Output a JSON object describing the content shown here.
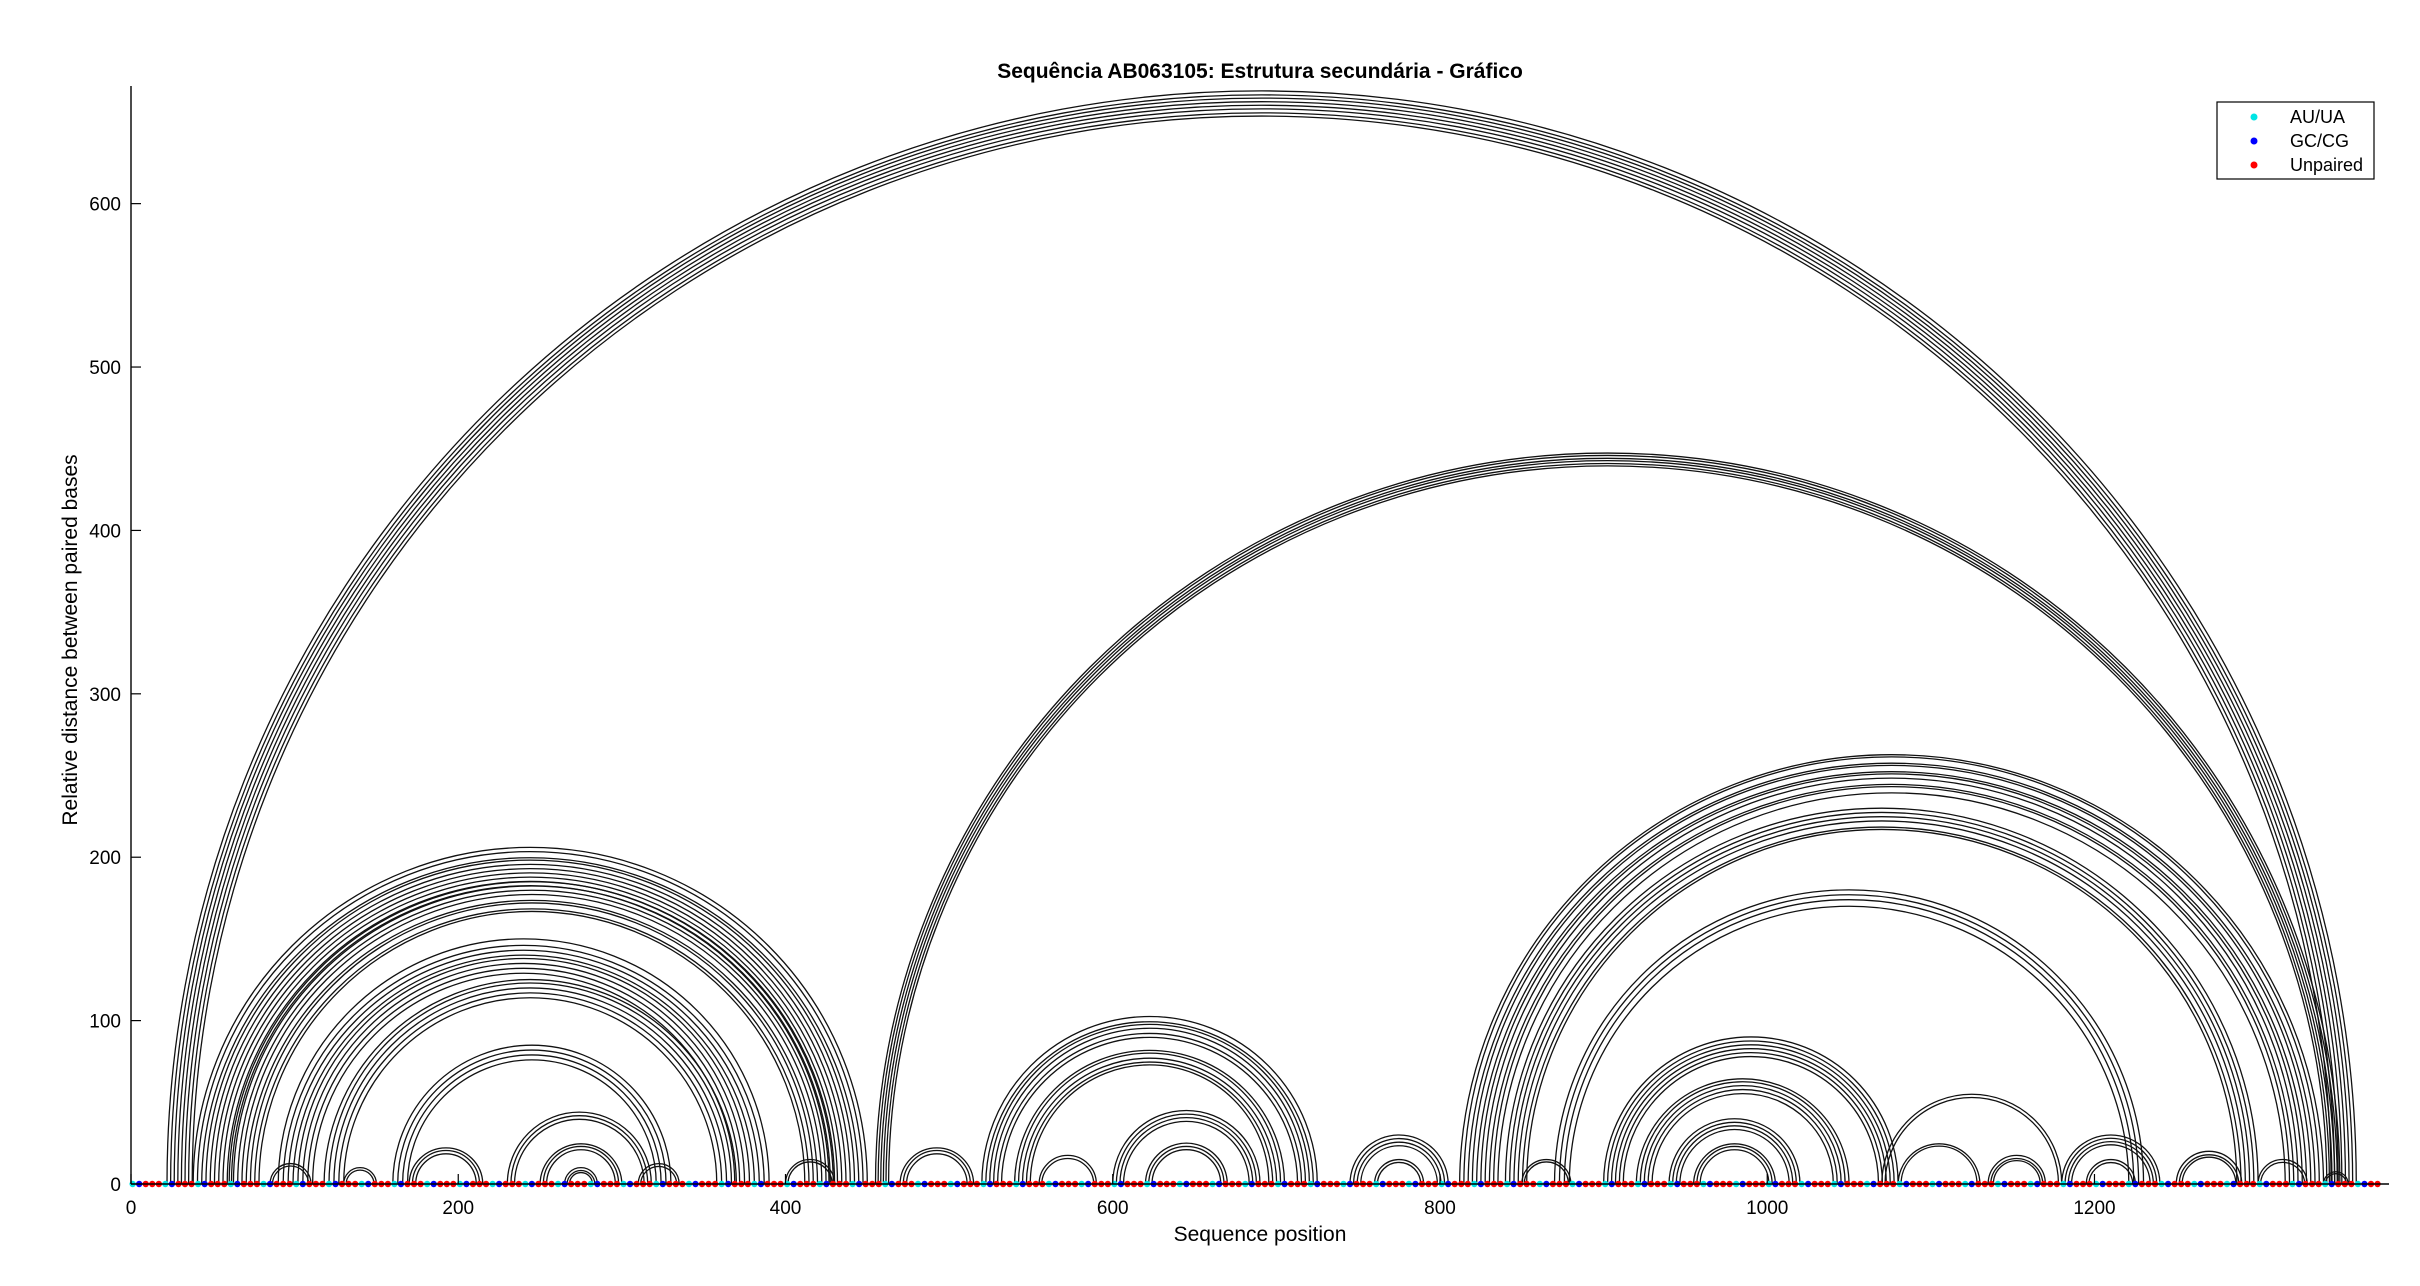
{
  "chart_data": {
    "type": "arc",
    "title": "Sequência AB063105: Estrutura secundária - Gráfico",
    "xlabel": "Sequence position",
    "ylabel": "Relative distance between paired bases",
    "xlim": [
      0,
      1380
    ],
    "ylim": [
      0,
      672
    ],
    "x_ticks": [
      "0",
      "200",
      "400",
      "600",
      "800",
      "1000",
      "1200"
    ],
    "x_tick_values": [
      0,
      200,
      400,
      600,
      800,
      1000,
      1200
    ],
    "y_ticks": [
      "0",
      "100",
      "200",
      "300",
      "400",
      "500",
      "600"
    ],
    "y_tick_values": [
      0,
      100,
      200,
      300,
      400,
      500,
      600
    ],
    "grid": false,
    "legend_position": "top-right",
    "legend": [
      {
        "label": "AU/UA",
        "color": "#00e5e5"
      },
      {
        "label": "GC/CG",
        "color": "#0000ff"
      },
      {
        "label": "Unpaired",
        "color": "#ff0000"
      }
    ],
    "arc_groups": [
      {
        "start": 22,
        "end": 1360,
        "count": 8,
        "step": 2.2
      },
      {
        "start": 455,
        "end": 1350,
        "count": 6,
        "step": 1.6
      },
      {
        "start": 38,
        "end": 450,
        "count": 10,
        "step": 2.6
      },
      {
        "start": 60,
        "end": 430,
        "count": 8,
        "step": 2.6
      },
      {
        "start": 90,
        "end": 390,
        "count": 8,
        "step": 3.0
      },
      {
        "start": 118,
        "end": 370,
        "count": 5,
        "step": 3.0
      },
      {
        "start": 160,
        "end": 330,
        "count": 4,
        "step": 3.0
      },
      {
        "start": 230,
        "end": 318,
        "count": 3,
        "step": 2.2
      },
      {
        "start": 250,
        "end": 300,
        "count": 3,
        "step": 2.0
      },
      {
        "start": 265,
        "end": 285,
        "count": 3,
        "step": 1.5
      },
      {
        "start": 170,
        "end": 215,
        "count": 3,
        "step": 2.0
      },
      {
        "start": 85,
        "end": 110,
        "count": 2,
        "step": 1.5
      },
      {
        "start": 130,
        "end": 150,
        "count": 2,
        "step": 1.5
      },
      {
        "start": 310,
        "end": 335,
        "count": 2,
        "step": 1.5
      },
      {
        "start": 400,
        "end": 430,
        "count": 2,
        "step": 1.5
      },
      {
        "start": 520,
        "end": 725,
        "count": 6,
        "step": 2.4
      },
      {
        "start": 540,
        "end": 705,
        "count": 5,
        "step": 2.4
      },
      {
        "start": 600,
        "end": 690,
        "count": 4,
        "step": 2.2
      },
      {
        "start": 620,
        "end": 670,
        "count": 3,
        "step": 2.0
      },
      {
        "start": 555,
        "end": 590,
        "count": 2,
        "step": 1.6
      },
      {
        "start": 470,
        "end": 515,
        "count": 3,
        "step": 2.0
      },
      {
        "start": 745,
        "end": 805,
        "count": 4,
        "step": 2.2
      },
      {
        "start": 760,
        "end": 790,
        "count": 2,
        "step": 1.8
      },
      {
        "start": 812,
        "end": 1340,
        "count": 10,
        "step": 2.6
      },
      {
        "start": 840,
        "end": 1300,
        "count": 6,
        "step": 2.6
      },
      {
        "start": 870,
        "end": 1230,
        "count": 4,
        "step": 3.0
      },
      {
        "start": 900,
        "end": 1080,
        "count": 6,
        "step": 2.4
      },
      {
        "start": 920,
        "end": 1050,
        "count": 5,
        "step": 2.4
      },
      {
        "start": 940,
        "end": 1020,
        "count": 4,
        "step": 2.2
      },
      {
        "start": 955,
        "end": 1005,
        "count": 3,
        "step": 2.0
      },
      {
        "start": 1070,
        "end": 1180,
        "count": 2,
        "step": 2.0
      },
      {
        "start": 1080,
        "end": 1130,
        "count": 2,
        "step": 1.8
      },
      {
        "start": 1135,
        "end": 1170,
        "count": 3,
        "step": 1.6
      },
      {
        "start": 1180,
        "end": 1240,
        "count": 4,
        "step": 2.0
      },
      {
        "start": 1195,
        "end": 1225,
        "count": 2,
        "step": 1.6
      },
      {
        "start": 1250,
        "end": 1290,
        "count": 3,
        "step": 1.8
      },
      {
        "start": 1300,
        "end": 1330,
        "count": 2,
        "step": 1.5
      },
      {
        "start": 850,
        "end": 880,
        "count": 2,
        "step": 1.5
      },
      {
        "start": 1340,
        "end": 1355,
        "count": 2,
        "step": 1.0
      }
    ],
    "baseline_points": {
      "start": 1,
      "end": 1375,
      "step": 4
    }
  }
}
